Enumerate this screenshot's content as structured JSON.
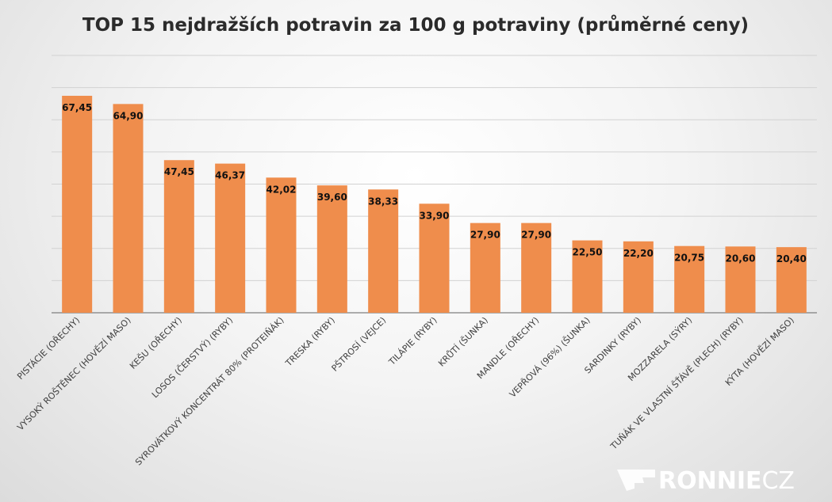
{
  "chart_data": {
    "type": "bar",
    "title": "TOP 15 nejdražších potravin za 100 g potraviny (průměrné ceny)",
    "xlabel": "",
    "ylabel": "",
    "ylim": [
      0,
      80
    ],
    "grid": true,
    "legend": "none",
    "bar_color": "#ef8d4c",
    "categories": [
      "PISTÁCIE (OŘECHY)",
      "VYSOKÝ ROŠTĚNEC (HOVĚZÍ MASO)",
      "KEŠU (OŘECHY)",
      "LOSOS (ČERSTVÝ) (RYBY)",
      "SYROVÁTKOVÝ KONCENTRÁT 80% (PROTEIŇÁK)",
      "TRESKA (RYBY)",
      "PŠTROSÍ (VEJCE)",
      "TILÁPIE (RYBY)",
      "KRŮTÍ (ŠUNKA)",
      "MANDLE (OŘECHY)",
      "VEPŘOVÁ (96%) (ŠUNKA)",
      "SARDINKY (RYBY)",
      "MOZZARELA (SÝRY)",
      "TUŇÁK VE VLASTNÍ ŠŤÁVĚ (PLECH) (RYBY)",
      "KÝTA (HOVĚZÍ MASO)"
    ],
    "values": [
      67.45,
      64.9,
      47.45,
      46.37,
      42.02,
      39.6,
      38.33,
      33.9,
      27.9,
      27.9,
      22.5,
      22.2,
      20.75,
      20.6,
      20.4
    ],
    "value_labels": [
      "67,45",
      "64,90",
      "47,45",
      "46,37",
      "42,02",
      "39,60",
      "38,33",
      "33,90",
      "27,90",
      "27,90",
      "22,50",
      "22,20",
      "20,75",
      "20,60",
      "20,40"
    ]
  },
  "watermark": {
    "main": "RONNIE",
    "suffix": "CZ"
  }
}
